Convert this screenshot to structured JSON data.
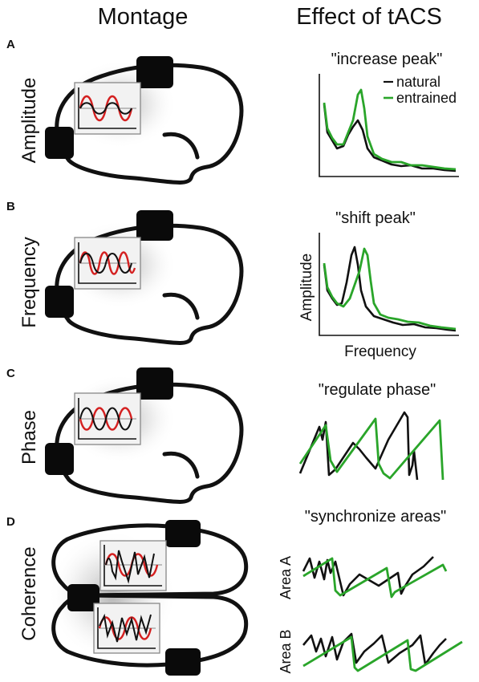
{
  "headers": {
    "montage": "Montage",
    "effect": "Effect of tACS"
  },
  "colors": {
    "natural": "#111111",
    "entrained": "#2aa52a",
    "stimulation": "#d42020"
  },
  "legend": {
    "natural": "natural",
    "entrained": "entrained"
  },
  "rows": [
    {
      "letter": "A",
      "label": "Amplitude",
      "effect": "\"increase peak\""
    },
    {
      "letter": "B",
      "label": "Frequency",
      "effect": "\"shift peak\"",
      "xlabel": "Frequency",
      "ylabel": "Amplitude"
    },
    {
      "letter": "C",
      "label": "Phase",
      "effect": "\"regulate phase\""
    },
    {
      "letter": "D",
      "label": "Coherence",
      "effect": "\"synchronize areas\"",
      "areas": [
        "Area A",
        "Area B"
      ]
    }
  ]
}
